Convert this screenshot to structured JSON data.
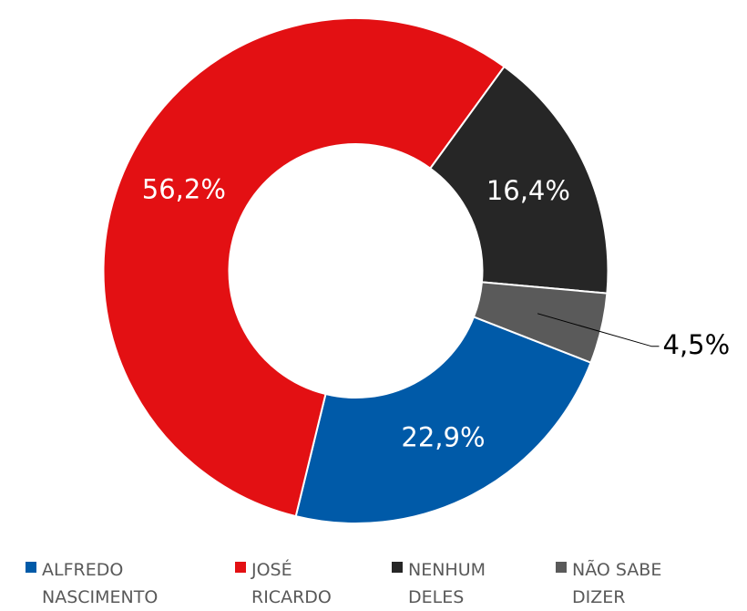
{
  "chart_data": {
    "type": "donut",
    "categories": [
      "ALFREDO NASCIMENTO",
      "JOSÉ RICARDO",
      "NENHUM DELES",
      "NÃO SABE DIZER"
    ],
    "values": [
      22.9,
      56.2,
      16.4,
      4.5
    ],
    "value_labels": [
      "22,9%",
      "56,2%",
      "16,4%",
      "4,5%"
    ],
    "colors": [
      "#005aa8",
      "#e31013",
      "#262626",
      "#5a5a5a"
    ],
    "legend": "bottom"
  }
}
